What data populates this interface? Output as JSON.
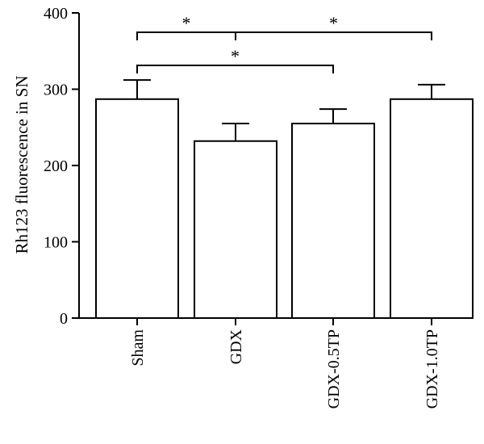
{
  "chart_data": {
    "type": "bar",
    "title": "",
    "xlabel": "",
    "ylabel": "Rh123 fluorescence in SN",
    "ylim": [
      0,
      400
    ],
    "yticks": [
      0,
      100,
      200,
      300,
      400
    ],
    "categories": [
      "Sham",
      "GDX",
      "GDX-0.5TP",
      "GDX-1.0TP"
    ],
    "values": [
      287,
      232,
      255,
      287
    ],
    "errors": [
      25,
      23,
      19,
      19
    ],
    "bar_fill": "#ffffff",
    "bar_stroke": "#000000",
    "grid": false,
    "legend": "none",
    "significance": [
      {
        "from": "Sham",
        "to": "GDX",
        "label": "*",
        "level": 2
      },
      {
        "from": "GDX",
        "to": "GDX-1.0TP",
        "label": "*",
        "level": 2
      },
      {
        "from": "Sham",
        "to": "GDX-0.5TP",
        "label": "*",
        "level": 1
      }
    ]
  }
}
